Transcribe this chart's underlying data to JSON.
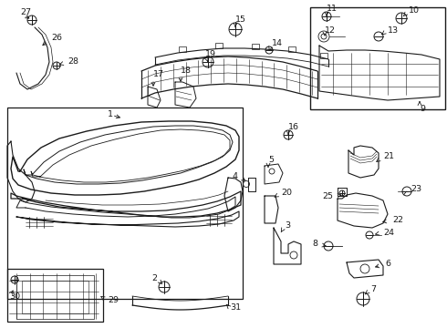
{
  "bg_color": "#ffffff",
  "line_color": "#1a1a1a",
  "figsize": [
    4.9,
    3.6
  ],
  "dpi": 100,
  "xlim": [
    0,
    490
  ],
  "ylim": [
    0,
    360
  ]
}
